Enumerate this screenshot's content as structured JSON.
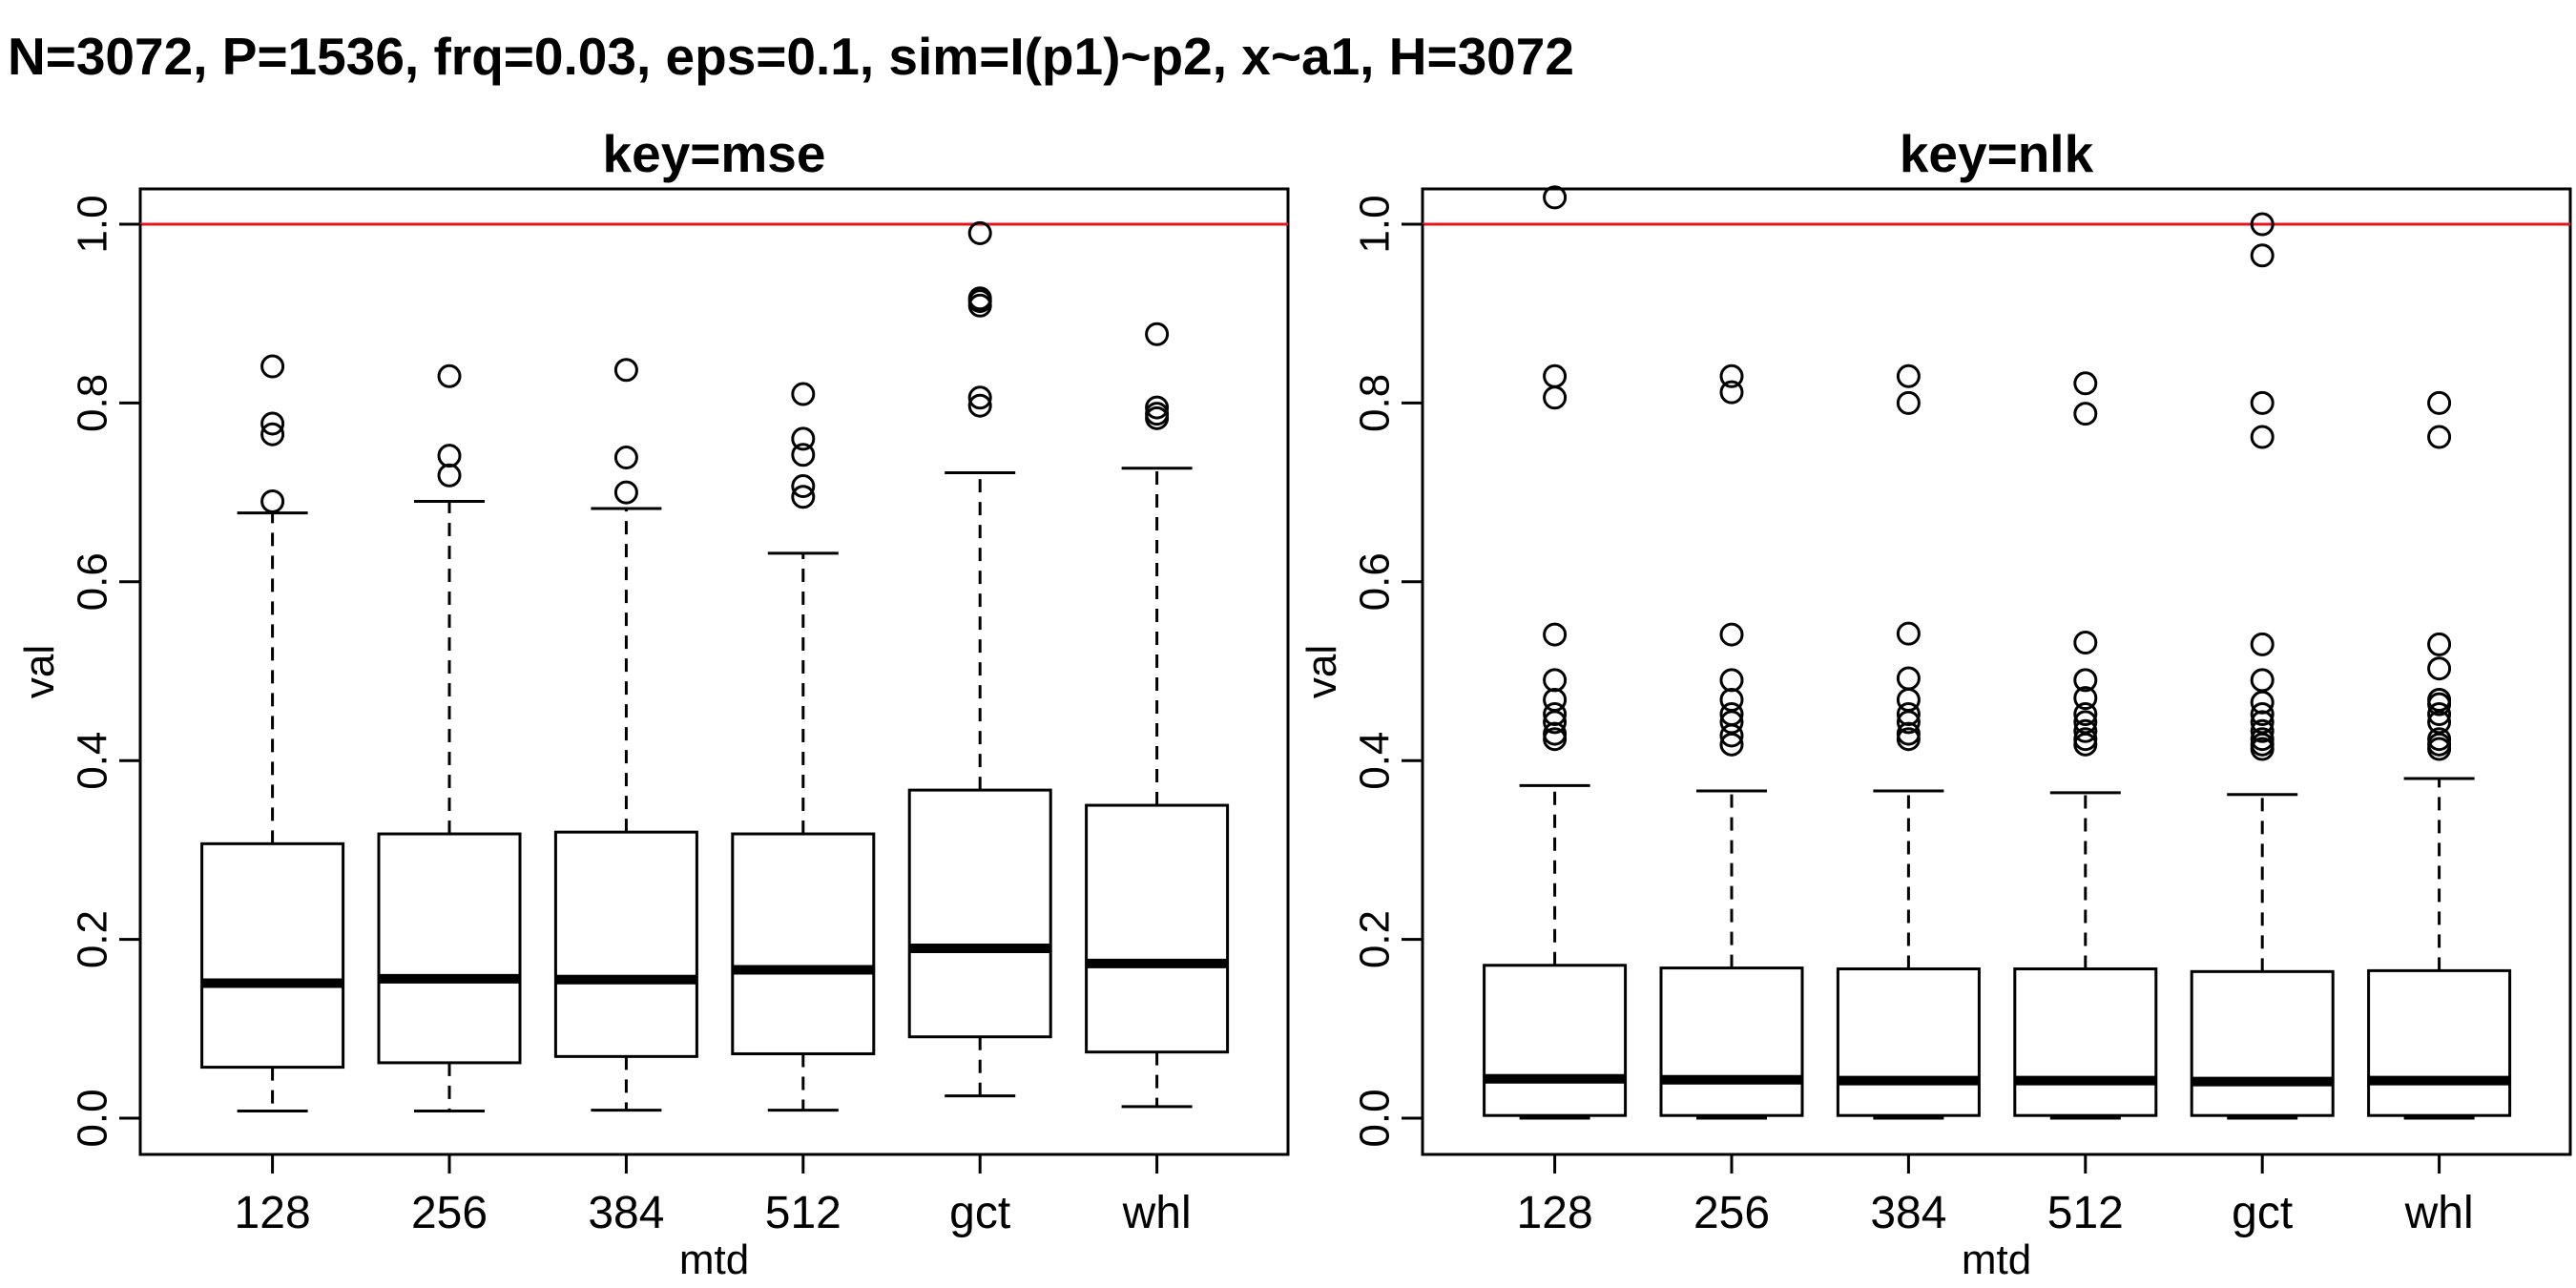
{
  "title": "N=3072, P=1536, frq=0.03, eps=0.1, sim=I(p1)~p2, x~a1, H=3072",
  "colors": {
    "reference_line": "#e8141c",
    "box": "#000000",
    "background": "#ffffff"
  },
  "chart_data": [
    {
      "type": "boxplot",
      "title": "key=mse",
      "xlabel": "mtd",
      "ylabel": "val",
      "ylim": [
        0,
        1.04
      ],
      "yticks": [
        "0.0",
        "0.2",
        "0.4",
        "0.6",
        "0.8",
        "1.0"
      ],
      "reference_line_y": 1.0,
      "categories": [
        "128",
        "256",
        "384",
        "512",
        "gct",
        "whl"
      ],
      "boxes": [
        {
          "category": "128",
          "whisker_low": 0.008,
          "q1": 0.057,
          "median": 0.151,
          "q3": 0.307,
          "whisker_high": 0.677,
          "outliers": [
            0.69,
            0.765,
            0.777,
            0.841
          ]
        },
        {
          "category": "256",
          "whisker_low": 0.008,
          "q1": 0.062,
          "median": 0.156,
          "q3": 0.318,
          "whisker_high": 0.69,
          "outliers": [
            0.719,
            0.741,
            0.83
          ]
        },
        {
          "category": "384",
          "whisker_low": 0.009,
          "q1": 0.069,
          "median": 0.155,
          "q3": 0.32,
          "whisker_high": 0.682,
          "outliers": [
            0.7,
            0.739,
            0.837
          ]
        },
        {
          "category": "512",
          "whisker_low": 0.009,
          "q1": 0.072,
          "median": 0.166,
          "q3": 0.318,
          "whisker_high": 0.632,
          "outliers": [
            0.695,
            0.707,
            0.742,
            0.76,
            0.81
          ]
        },
        {
          "category": "gct",
          "whisker_low": 0.025,
          "q1": 0.091,
          "median": 0.19,
          "q3": 0.367,
          "whisker_high": 0.722,
          "outliers": [
            0.797,
            0.806,
            0.909,
            0.914,
            0.917,
            0.99
          ]
        },
        {
          "category": "whl",
          "whisker_low": 0.013,
          "q1": 0.074,
          "median": 0.173,
          "q3": 0.35,
          "whisker_high": 0.727,
          "outliers": [
            0.783,
            0.788,
            0.795,
            0.877
          ]
        }
      ]
    },
    {
      "type": "boxplot",
      "title": "key=nlk",
      "xlabel": "mtd",
      "ylabel": "val",
      "ylim": [
        0,
        1.04
      ],
      "yticks": [
        "0.0",
        "0.2",
        "0.4",
        "0.6",
        "0.8",
        "1.0"
      ],
      "reference_line_y": 1.0,
      "categories": [
        "128",
        "256",
        "384",
        "512",
        "gct",
        "whl"
      ],
      "boxes": [
        {
          "category": "128",
          "whisker_low": 0.0,
          "q1": 0.003,
          "median": 0.044,
          "q3": 0.171,
          "whisker_high": 0.372,
          "outliers": [
            0.424,
            0.43,
            0.443,
            0.452,
            0.468,
            0.49,
            0.541,
            0.806,
            0.83,
            1.03
          ]
        },
        {
          "category": "256",
          "whisker_low": 0.0,
          "q1": 0.003,
          "median": 0.043,
          "q3": 0.168,
          "whisker_high": 0.366,
          "outliers": [
            0.418,
            0.428,
            0.443,
            0.452,
            0.468,
            0.49,
            0.541,
            0.812,
            0.83
          ]
        },
        {
          "category": "384",
          "whisker_low": 0.0,
          "q1": 0.003,
          "median": 0.042,
          "q3": 0.167,
          "whisker_high": 0.366,
          "outliers": [
            0.424,
            0.43,
            0.443,
            0.452,
            0.468,
            0.492,
            0.542,
            0.8,
            0.83
          ]
        },
        {
          "category": "512",
          "whisker_low": 0.0,
          "q1": 0.003,
          "median": 0.042,
          "q3": 0.167,
          "whisker_high": 0.364,
          "outliers": [
            0.418,
            0.424,
            0.433,
            0.443,
            0.452,
            0.47,
            0.49,
            0.532,
            0.788,
            0.822
          ]
        },
        {
          "category": "gct",
          "whisker_low": 0.0,
          "q1": 0.003,
          "median": 0.041,
          "q3": 0.164,
          "whisker_high": 0.362,
          "outliers": [
            0.413,
            0.418,
            0.424,
            0.433,
            0.443,
            0.452,
            0.465,
            0.49,
            0.53,
            0.762,
            0.8,
            0.965,
            1.0
          ]
        },
        {
          "category": "whl",
          "whisker_low": 0.0,
          "q1": 0.003,
          "median": 0.042,
          "q3": 0.165,
          "whisker_high": 0.38,
          "outliers": [
            0.413,
            0.418,
            0.424,
            0.443,
            0.452,
            0.463,
            0.468,
            0.503,
            0.53,
            0.762,
            0.8
          ]
        }
      ]
    }
  ]
}
